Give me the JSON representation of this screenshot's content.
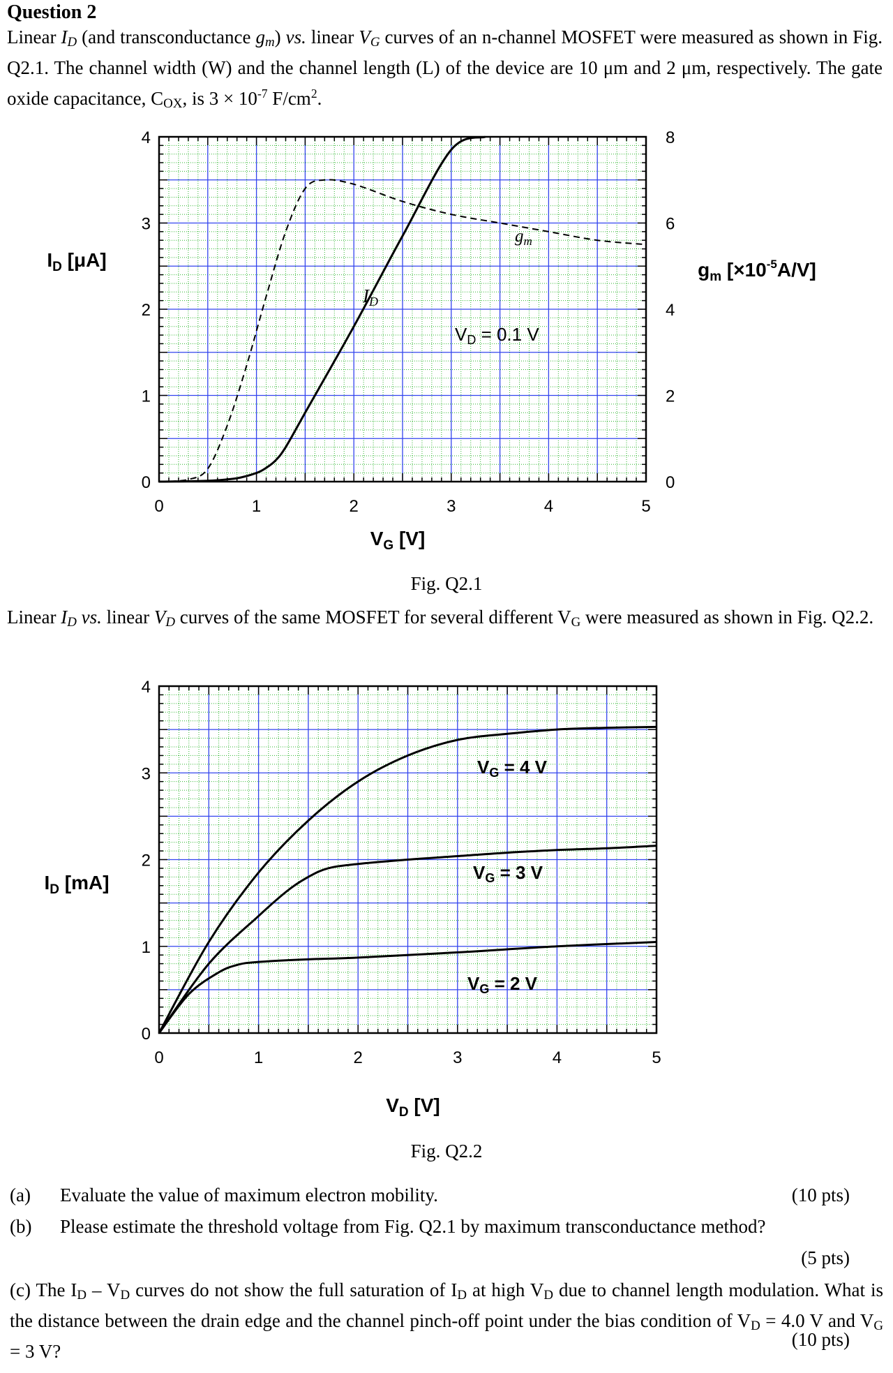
{
  "question": {
    "heading": "Question 2",
    "intro": {
      "t1": "Linear ",
      "id_sym": "I",
      "id_sub": "D",
      "t2": " (and transconductance ",
      "gm_sym": "g",
      "gm_sub": "m",
      "t3": ") ",
      "vs": "vs.",
      "t4": " linear ",
      "vg_sym": "V",
      "vg_sub": "G",
      "t5": " curves of an n-channel MOSFET were measured as shown in Fig. Q2.1.   The channel width (W) and the channel length (L) of the device are 10 μm and 2 μm, respectively. The gate  oxide capacitance, C",
      "cox_sub": "OX",
      "t6": ", is 3 × 10",
      "exp1": "-7",
      "t7": " F/cm",
      "exp2": "2",
      "t8": "."
    },
    "fig1_caption": "Fig. Q2.1",
    "middle": {
      "t1": "Linear ",
      "id_sym": "I",
      "id_sub": "D",
      "t2": " ",
      "vs": "vs.",
      "t3": " linear ",
      "vd_sym": "V",
      "vd_sub": "D",
      "t4": " curves of the same MOSFET for several different V",
      "vg_sub": "G",
      "t5": " were measured as shown in Fig. Q2.2."
    },
    "fig2_caption": "Fig. Q2.2",
    "parts": [
      {
        "label": "(a)",
        "text": "Evaluate the value of maximum electron mobility.",
        "pts": "(10 pts)"
      },
      {
        "label": "(b)",
        "text": "Please estimate the threshold voltage from Fig. Q2.1 by maximum transconductance method?",
        "pts": "(5 pts)"
      }
    ],
    "part_c": {
      "t1": "(c)    The I",
      "sub1": "D",
      "t2": " – V",
      "sub2": "D",
      "t3": " curves do not show the full saturation of I",
      "sub3": "D",
      "t4": " at high V",
      "sub4": "D",
      "t5": " due to channel length modulation. What is the distance between the drain edge and the channel pinch-off point under the bias condition of V",
      "sub5": "D",
      "t6": " = 4.0 V and V",
      "sub6": "G",
      "t7": " = 3 V?",
      "pts": "(10 pts)"
    }
  },
  "charts": [
    {
      "left_axis": {
        "label": "I",
        "label_sub": "D",
        "label_unit": " [μA]"
      },
      "right_axis": {
        "label": "g",
        "label_sub": "m",
        "label_unit_pre": " [×10",
        "label_exp": "-5",
        "label_unit_post": "A/V]"
      },
      "x_axis": {
        "label": "V",
        "label_sub": "G",
        "label_unit": " [V]"
      },
      "annotations": {
        "id": "I",
        "id_sub": "D",
        "gm": "g",
        "gm_sub": "m",
        "vd": "V",
        "vd_sub": "D",
        "vd_rest": " = 0.1 V"
      }
    },
    {
      "left_axis": {
        "label": "I",
        "label_sub": "D",
        "label_unit": " [mA]"
      },
      "x_axis": {
        "label": "V",
        "label_sub": "D",
        "label_unit": " [V]"
      },
      "annotations": [
        {
          "pre": "V",
          "sub": "G",
          "rest": " = 4 V"
        },
        {
          "pre": "V",
          "sub": "G",
          "rest": " = 3 V"
        },
        {
          "pre": "V",
          "sub": "G",
          "rest": " = 2 V"
        }
      ]
    }
  ],
  "chart_data": [
    {
      "type": "line",
      "xlim": [
        0,
        5
      ],
      "ylim": [
        0,
        4
      ],
      "y2lim": [
        0,
        8
      ],
      "x_ticks": [
        "0",
        "1",
        "2",
        "3",
        "4",
        "5"
      ],
      "y_ticks": [
        "0",
        "1",
        "2",
        "3",
        "4"
      ],
      "y2_ticks": [
        "0",
        "2",
        "4",
        "6",
        "8"
      ],
      "grid": true,
      "series": [
        {
          "name": "I_D",
          "axis": "left",
          "style": "solid",
          "x": [
            0,
            0.5,
            0.8,
            1.0,
            1.1,
            1.2,
            1.3,
            1.5,
            2.0,
            2.5,
            3.0,
            3.35
          ],
          "y": [
            0,
            0.01,
            0.04,
            0.1,
            0.16,
            0.25,
            0.4,
            0.8,
            1.8,
            2.85,
            3.85,
            4.0
          ]
        },
        {
          "name": "g_m",
          "axis": "right",
          "style": "dashed",
          "x": [
            0,
            0.3,
            0.5,
            0.7,
            0.9,
            1.1,
            1.3,
            1.5,
            1.7,
            2.0,
            2.5,
            3.0,
            3.5,
            4.0,
            4.5,
            5.0
          ],
          "y": [
            0,
            0.05,
            0.3,
            1.3,
            2.7,
            4.3,
            5.8,
            6.8,
            7.0,
            6.9,
            6.5,
            6.2,
            6.0,
            5.8,
            5.6,
            5.5
          ]
        }
      ]
    },
    {
      "type": "line",
      "xlim": [
        0,
        5
      ],
      "ylim": [
        0,
        4
      ],
      "x_ticks": [
        "0",
        "1",
        "2",
        "3",
        "4",
        "5"
      ],
      "y_ticks": [
        "0",
        "1",
        "2",
        "3",
        "4"
      ],
      "grid": true,
      "series": [
        {
          "x": [
            0,
            0.5,
            1.0,
            1.5,
            2.0,
            2.5,
            3.0,
            3.5,
            4.0,
            4.5,
            5.0
          ],
          "y": [
            0,
            1.05,
            1.85,
            2.45,
            2.9,
            3.2,
            3.38,
            3.45,
            3.5,
            3.52,
            3.53
          ]
        },
        {
          "x": [
            0,
            0.5,
            1.0,
            1.3,
            1.5,
            1.7,
            2.0,
            2.5,
            3.0,
            3.5,
            4.0,
            4.5,
            5.0
          ],
          "y": [
            0,
            0.8,
            1.35,
            1.65,
            1.8,
            1.9,
            1.95,
            2.0,
            2.04,
            2.08,
            2.11,
            2.13,
            2.16
          ]
        },
        {
          "x": [
            0,
            0.3,
            0.6,
            0.8,
            1.0,
            1.5,
            2.0,
            3.0,
            4.0,
            5.0
          ],
          "y": [
            0,
            0.45,
            0.7,
            0.79,
            0.82,
            0.85,
            0.87,
            0.93,
            1.0,
            1.05
          ]
        }
      ]
    }
  ]
}
